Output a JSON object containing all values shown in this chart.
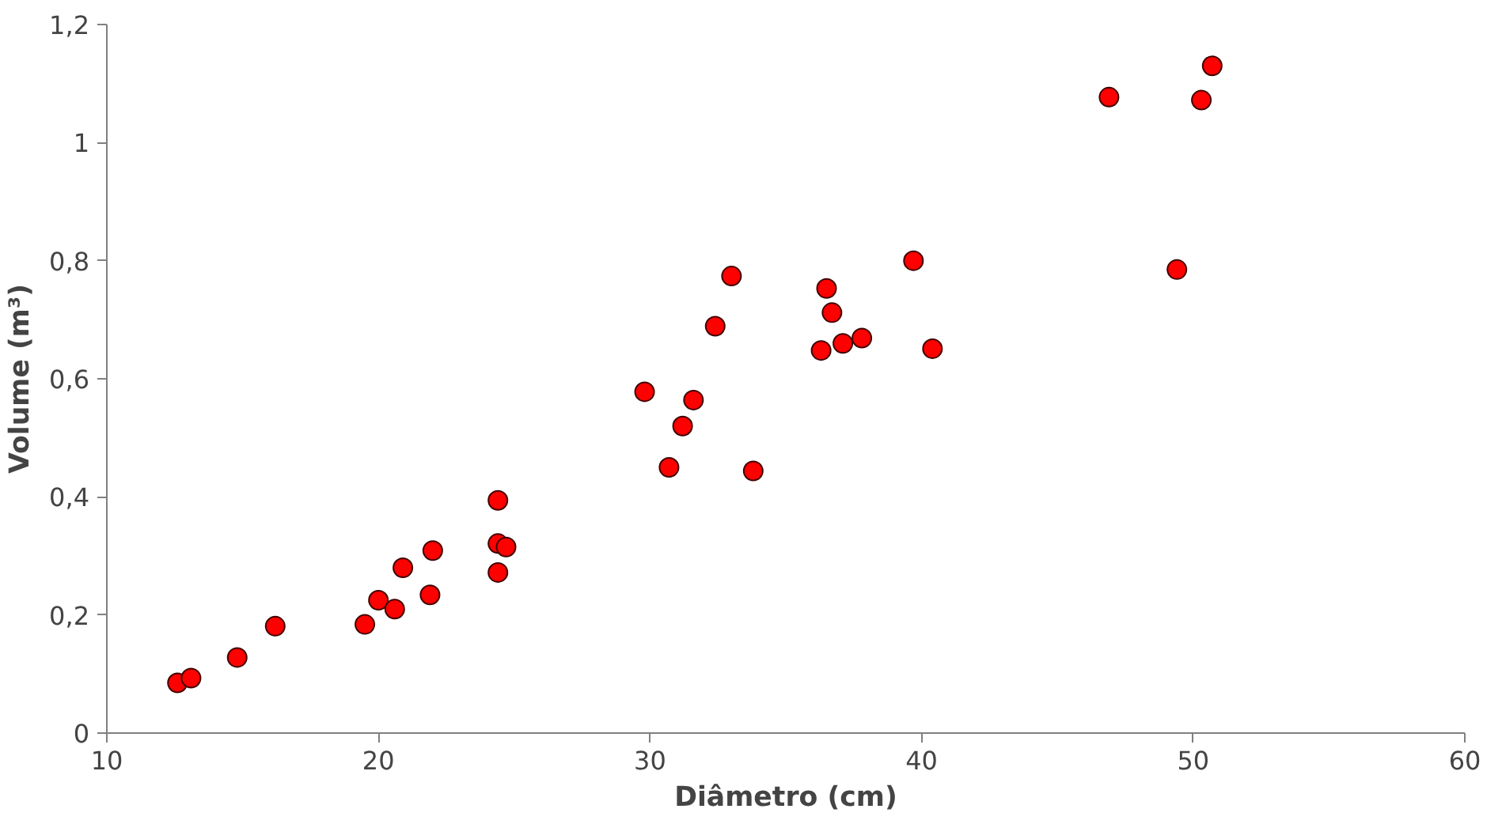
{
  "chart_data": {
    "type": "scatter",
    "xlabel": "Diâmetro (cm)",
    "ylabel": "Volume (m³)",
    "x": [
      12.6,
      13.1,
      14.8,
      16.2,
      19.5,
      20.0,
      20.6,
      20.9,
      21.9,
      22.0,
      24.4,
      24.4,
      24.4,
      24.7,
      29.8,
      30.7,
      31.2,
      31.6,
      32.4,
      33.0,
      33.8,
      36.3,
      36.5,
      36.7,
      37.1,
      37.8,
      39.7,
      40.4,
      46.9,
      49.4,
      50.3,
      50.7
    ],
    "values": [
      0.085,
      0.093,
      0.128,
      0.181,
      0.184,
      0.225,
      0.21,
      0.28,
      0.234,
      0.309,
      0.272,
      0.394,
      0.321,
      0.315,
      0.578,
      0.45,
      0.52,
      0.564,
      0.689,
      0.774,
      0.444,
      0.648,
      0.753,
      0.712,
      0.66,
      0.669,
      0.8,
      0.651,
      1.077,
      0.785,
      1.072,
      1.13
    ],
    "color": "#ff0000",
    "marker": "circle",
    "grid": false,
    "xlim": [
      10,
      60
    ],
    "xticks": [
      10,
      20,
      30,
      40,
      50,
      60
    ],
    "ylim": [
      0,
      1.2
    ],
    "yticks": [
      0,
      {
        "value": 0.2,
        "label": "0,2"
      },
      {
        "value": 0.4,
        "label": "0,4"
      },
      {
        "value": 0.6,
        "label": "0,6"
      },
      {
        "value": 0.8,
        "label": "0,8"
      },
      1,
      {
        "value": 1.2,
        "label": "1,2"
      }
    ]
  }
}
